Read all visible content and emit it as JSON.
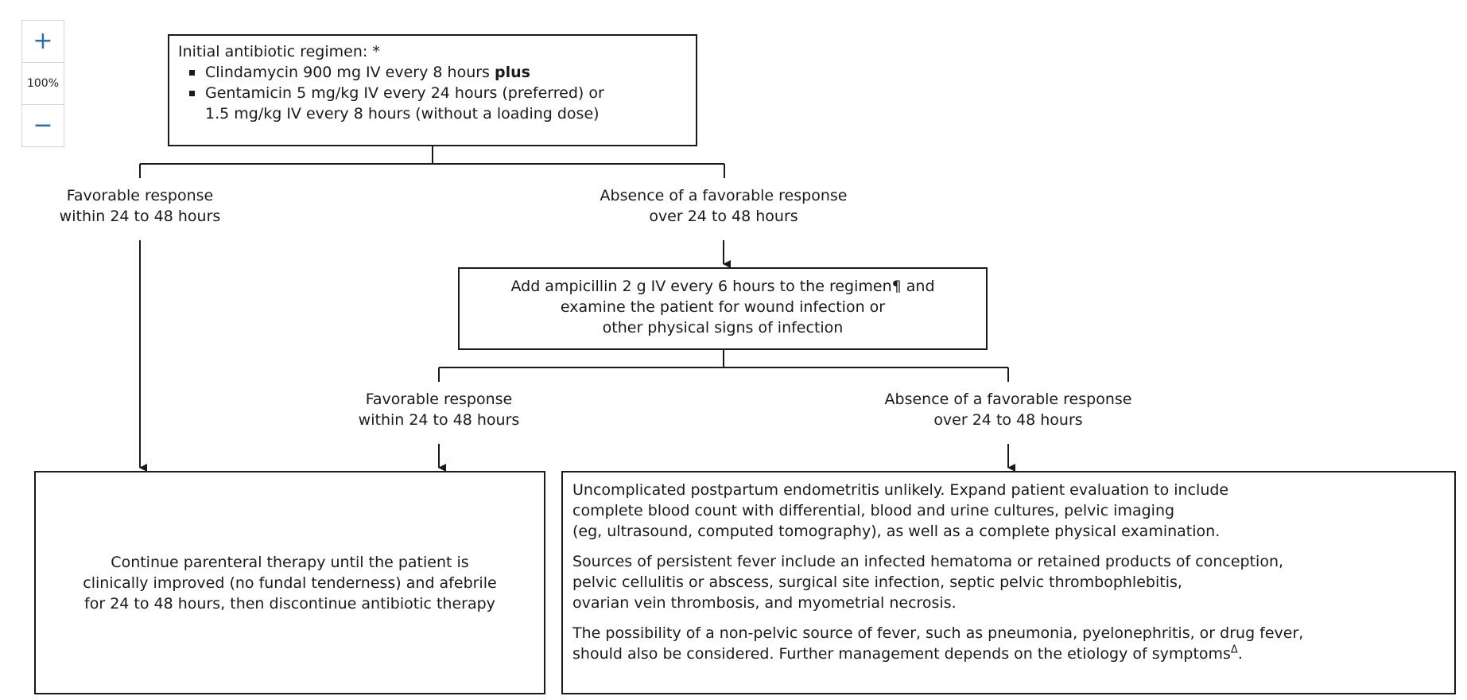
{
  "zoom": {
    "plus": "+",
    "level": "100%",
    "minus": "−"
  },
  "initial": {
    "title": "Initial antibiotic regimen:",
    "title_mark": "*",
    "item1": "Clindamycin 900 mg IV every 8 hours",
    "item1_bold": "plus",
    "item2_line1": "Gentamicin 5 mg/kg IV every 24 hours (preferred) or",
    "item2_line2": "1.5 mg/kg IV every 8 hours (without a loading dose)"
  },
  "branch1": {
    "fav_line1": "Favorable response",
    "fav_line2": "within 24 to 48 hours",
    "abs_line1": "Absence of a favorable response",
    "abs_line2": "over 24 to 48 hours"
  },
  "add": {
    "line1": "Add ampicillin 2 g IV every 6 hours to the regimen",
    "line1_mark": "¶",
    "line1_end": " and",
    "line2": "examine the patient for wound infection or",
    "line3": "other physical signs of infection"
  },
  "branch2": {
    "fav_line1": "Favorable response",
    "fav_line2": "within 24 to 48 hours",
    "abs_line1": "Absence of a favorable response",
    "abs_line2": "over 24 to 48 hours"
  },
  "continue": {
    "line1": "Continue parenteral therapy until the patient is",
    "line2": "clinically improved (no fundal tenderness) and afebrile",
    "line3": "for 24 to 48 hours, then discontinue antibiotic therapy"
  },
  "unc": {
    "p1_l1": "Uncomplicated postpartum endometritis unlikely. Expand patient evaluation to include",
    "p1_l2": "complete blood count with differential, blood and urine cultures, pelvic imaging",
    "p1_l3": "(eg, ultrasound, computed tomography), as well as a complete physical examination.",
    "p2_l1": "Sources of persistent fever include an infected hematoma or retained products of conception,",
    "p2_l2": "pelvic cellulitis or abscess, surgical site infection, septic pelvic thrombophlebitis,",
    "p2_l3": "ovarian vein thrombosis, and myometrial necrosis.",
    "p3_l1": "The possibility of a non-pelvic source of fever, such as pneumonia, pyelonephritis, or drug fever,",
    "p3_l2": "should also be considered. Further management depends on the etiology of symptoms",
    "p3_mark": "Δ",
    "p3_end": "."
  }
}
